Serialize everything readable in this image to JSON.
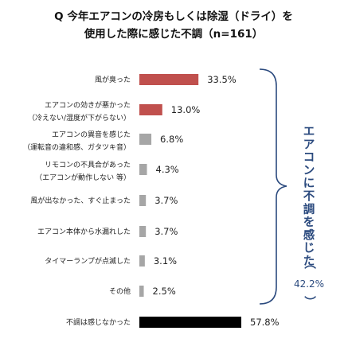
{
  "chart_data": {
    "type": "bar",
    "orientation": "horizontal",
    "title_lines": [
      "Q  今年エアコンの冷房もしくは除湿（ドライ）を",
      "使用した際に感じた不調（n=161）"
    ],
    "categories": [
      [
        "風が臭った"
      ],
      [
        "エアコンの効きが悪かった",
        "（冷えない/湿度が下がらない）"
      ],
      [
        "エアコンの異音を感じた",
        "（運転音の違和感、ガタツキ音）"
      ],
      [
        "リモコンの不具合があった",
        "（エアコンが動作しない 等）"
      ],
      [
        "風が出なかった、すぐ止まった"
      ],
      [
        "エアコン本体から水漏れした"
      ],
      [
        "タイマーランプが点滅した"
      ],
      [
        "その他"
      ],
      [
        "不調は感じなかった"
      ]
    ],
    "values": [
      33.5,
      13.0,
      6.8,
      4.3,
      3.7,
      3.7,
      3.1,
      2.5,
      57.8
    ],
    "value_labels": [
      "33.5%",
      "13.0%",
      "6.8%",
      "4.3%",
      "3.7%",
      "3.7%",
      "3.1%",
      "2.5%",
      "57.8%"
    ],
    "bar_colors": [
      "#c0504d",
      "#c0504d",
      "#a6a6a6",
      "#a6a6a6",
      "#a6a6a6",
      "#a6a6a6",
      "#a6a6a6",
      "#a6a6a6",
      "#000000"
    ],
    "bracket_annotation": {
      "label": "エアコンに不調を感じた",
      "open_paren": "（",
      "value": "42.2%",
      "close_paren": "）",
      "color": "#2b4a7e"
    }
  }
}
